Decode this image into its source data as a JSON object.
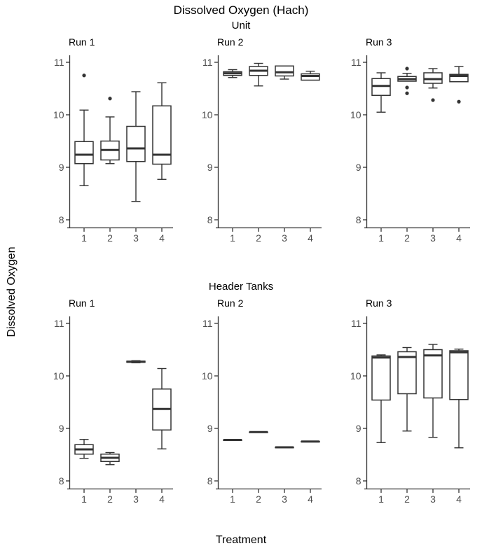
{
  "chart_data": {
    "type": "boxplot",
    "title": "Dissolved Oxygen (Hach)",
    "ylabel": "Dissolved Oxygen",
    "xlabel": "Treatment",
    "categories": [
      "1",
      "2",
      "3",
      "4"
    ],
    "y_ticks": [
      8,
      9,
      10,
      11
    ],
    "ylim": [
      7.85,
      11.15
    ],
    "grid": false,
    "legend": "none",
    "colors": {
      "box_stroke": "#333333",
      "axis": "#333333",
      "tick_label": "#4d4d4d",
      "title_text": "#000000",
      "background": "#ffffff"
    },
    "facet_rows": [
      {
        "label": "Unit",
        "panels": [
          {
            "label": "Run 1",
            "boxes": [
              {
                "x": "1",
                "low": 8.65,
                "q1": 9.07,
                "median": 9.24,
                "q3": 9.49,
                "high": 10.09,
                "outliers": [
                  10.75
                ]
              },
              {
                "x": "2",
                "low": 9.07,
                "q1": 9.14,
                "median": 9.33,
                "q3": 9.5,
                "high": 9.96,
                "outliers": [
                  10.31
                ]
              },
              {
                "x": "3",
                "low": 8.35,
                "q1": 9.11,
                "median": 9.36,
                "q3": 9.78,
                "high": 10.44,
                "outliers": []
              },
              {
                "x": "4",
                "low": 8.77,
                "q1": 9.06,
                "median": 9.24,
                "q3": 10.17,
                "high": 10.61,
                "outliers": []
              }
            ]
          },
          {
            "label": "Run 2",
            "boxes": [
              {
                "x": "1",
                "low": 10.71,
                "q1": 10.75,
                "median": 10.79,
                "q3": 10.82,
                "high": 10.86,
                "outliers": []
              },
              {
                "x": "2",
                "low": 10.55,
                "q1": 10.75,
                "median": 10.84,
                "q3": 10.92,
                "high": 10.98,
                "outliers": []
              },
              {
                "x": "3",
                "low": 10.68,
                "q1": 10.74,
                "median": 10.81,
                "q3": 10.93,
                "high": 10.93,
                "outliers": []
              },
              {
                "x": "4",
                "low": 10.66,
                "q1": 10.66,
                "median": 10.74,
                "q3": 10.78,
                "high": 10.83,
                "outliers": []
              }
            ]
          },
          {
            "label": "Run 3",
            "boxes": [
              {
                "x": "1",
                "low": 10.05,
                "q1": 10.37,
                "median": 10.55,
                "q3": 10.69,
                "high": 10.8,
                "outliers": []
              },
              {
                "x": "2",
                "low": 10.64,
                "q1": 10.64,
                "median": 10.68,
                "q3": 10.73,
                "high": 10.79,
                "outliers": [
                  10.88,
                  10.52,
                  10.41
                ]
              },
              {
                "x": "3",
                "low": 10.51,
                "q1": 10.6,
                "median": 10.68,
                "q3": 10.8,
                "high": 10.88,
                "outliers": [
                  10.28
                ]
              },
              {
                "x": "4",
                "low": 10.63,
                "q1": 10.63,
                "median": 10.74,
                "q3": 10.77,
                "high": 10.92,
                "outliers": [
                  10.25
                ]
              }
            ]
          }
        ]
      },
      {
        "label": "Header Tanks",
        "panels": [
          {
            "label": "Run 1",
            "boxes": [
              {
                "x": "1",
                "low": 8.43,
                "q1": 8.51,
                "median": 8.6,
                "q3": 8.69,
                "high": 8.79,
                "outliers": []
              },
              {
                "x": "2",
                "low": 8.31,
                "q1": 8.37,
                "median": 8.44,
                "q3": 8.51,
                "high": 8.54,
                "outliers": []
              },
              {
                "x": "3",
                "low": 10.25,
                "q1": 10.26,
                "median": 10.27,
                "q3": 10.28,
                "high": 10.29,
                "outliers": []
              },
              {
                "x": "4",
                "low": 8.61,
                "q1": 8.97,
                "median": 9.37,
                "q3": 9.75,
                "high": 10.14,
                "outliers": []
              }
            ]
          },
          {
            "label": "Run 2",
            "boxes": [
              {
                "x": "1",
                "low": 8.78,
                "q1": 8.78,
                "median": 8.78,
                "q3": 8.78,
                "high": 8.78,
                "outliers": []
              },
              {
                "x": "2",
                "low": 8.93,
                "q1": 8.93,
                "median": 8.93,
                "q3": 8.93,
                "high": 8.93,
                "outliers": []
              },
              {
                "x": "3",
                "low": 8.64,
                "q1": 8.64,
                "median": 8.64,
                "q3": 8.64,
                "high": 8.64,
                "outliers": []
              },
              {
                "x": "4",
                "low": 8.75,
                "q1": 8.75,
                "median": 8.75,
                "q3": 8.75,
                "high": 8.75,
                "outliers": []
              }
            ]
          },
          {
            "label": "Run 3",
            "boxes": [
              {
                "x": "1",
                "low": 8.73,
                "q1": 9.54,
                "median": 10.35,
                "q3": 10.38,
                "high": 10.4,
                "outliers": []
              },
              {
                "x": "2",
                "low": 8.95,
                "q1": 9.66,
                "median": 10.36,
                "q3": 10.46,
                "high": 10.54,
                "outliers": []
              },
              {
                "x": "3",
                "low": 8.83,
                "q1": 9.58,
                "median": 10.39,
                "q3": 10.5,
                "high": 10.6,
                "outliers": []
              },
              {
                "x": "4",
                "low": 8.63,
                "q1": 9.55,
                "median": 10.45,
                "q3": 10.48,
                "high": 10.51,
                "outliers": []
              }
            ]
          }
        ]
      }
    ]
  }
}
